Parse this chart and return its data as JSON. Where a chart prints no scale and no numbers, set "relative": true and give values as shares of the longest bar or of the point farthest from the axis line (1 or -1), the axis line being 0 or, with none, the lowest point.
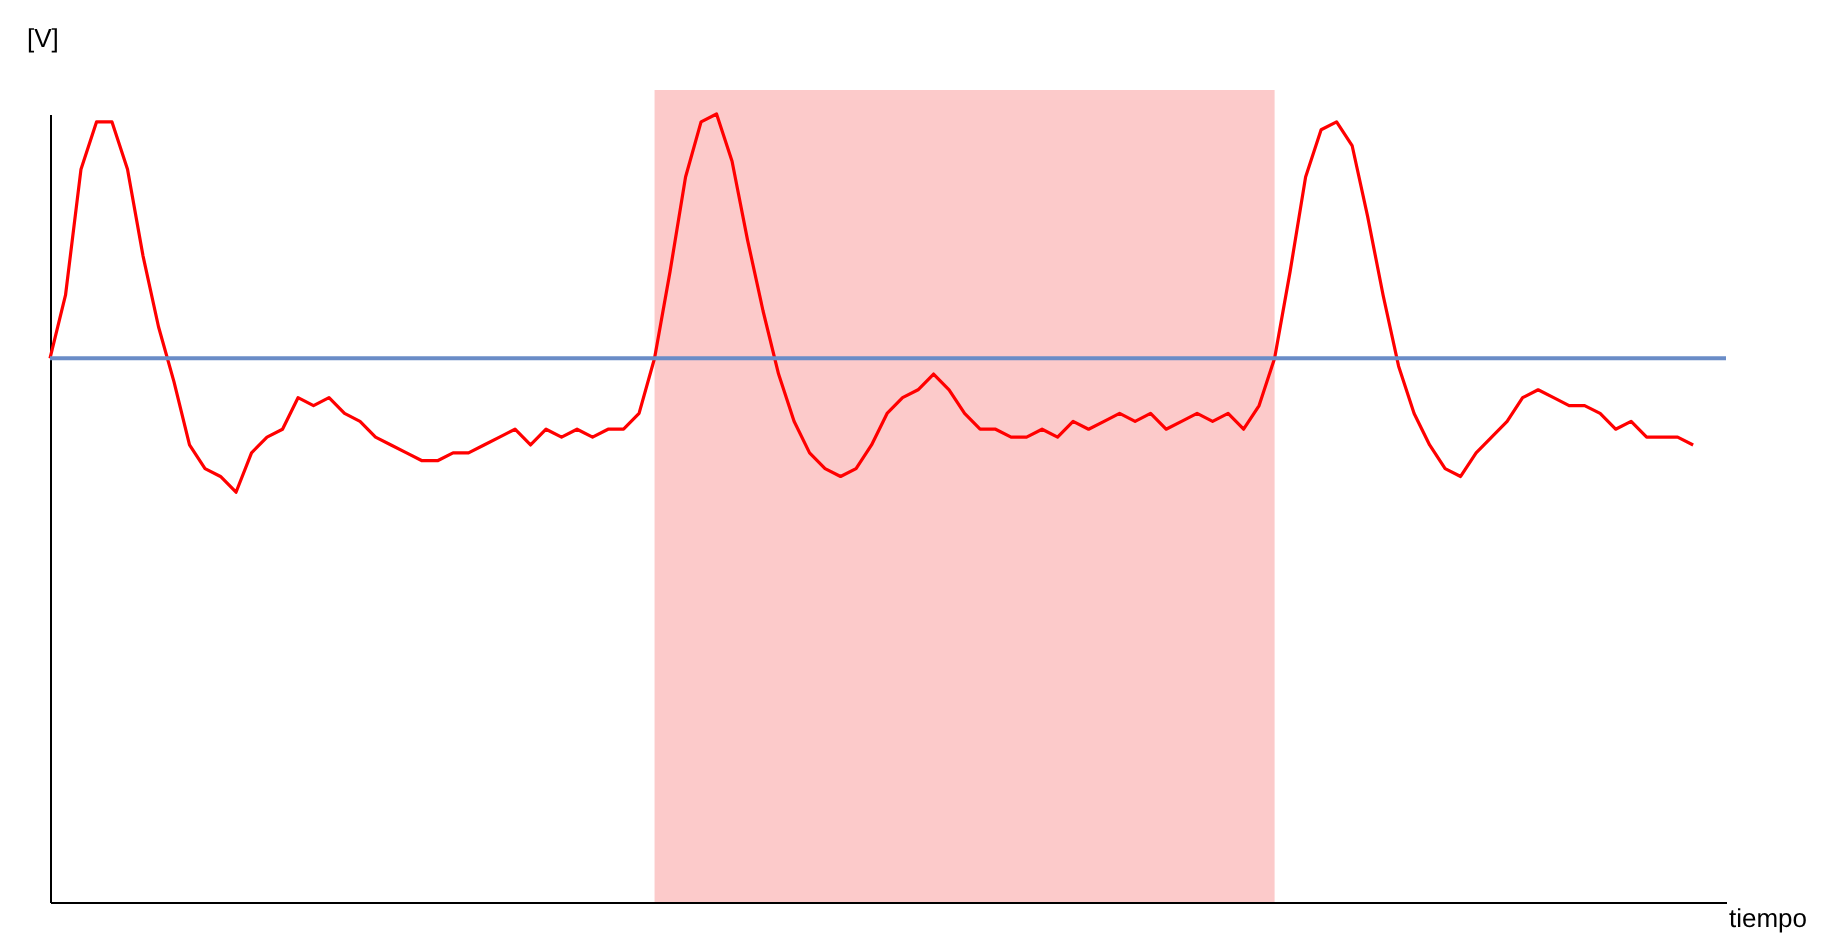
{
  "chart_data": {
    "type": "line",
    "relative": true,
    "ylabel": "[V]",
    "xlabel": "tiempo",
    "marker": "none",
    "line_style": "solid",
    "categories": [
      null,
      null,
      null,
      null,
      null,
      null,
      null,
      null,
      null,
      null,
      null,
      null,
      null,
      null,
      null,
      null,
      null,
      null,
      null,
      null,
      null,
      null,
      null,
      null,
      null,
      null,
      null,
      null,
      null,
      null,
      null,
      null,
      null,
      null,
      null,
      null,
      null,
      null,
      null,
      null,
      null,
      null,
      null,
      null,
      null,
      null,
      null,
      null,
      null,
      null,
      null,
      null,
      null,
      null,
      null,
      null,
      null,
      null,
      null,
      null,
      null,
      null,
      null,
      null,
      null,
      null,
      null,
      null,
      null,
      null,
      null,
      null,
      null,
      null,
      null,
      null,
      null,
      null,
      null,
      null,
      null,
      null,
      null,
      null,
      null,
      null,
      null,
      null,
      null,
      null,
      null,
      null,
      null,
      null,
      null,
      null,
      null,
      null,
      null,
      null,
      null,
      null,
      null,
      null,
      null,
      null,
      null
    ],
    "series": [
      {
        "color": "#ff0000",
        "values": [
          0.69,
          0.77,
          0.93,
          0.99,
          0.99,
          0.93,
          0.82,
          0.73,
          0.66,
          0.58,
          0.55,
          0.54,
          0.52,
          0.57,
          0.59,
          0.6,
          0.64,
          0.63,
          0.64,
          0.62,
          0.61,
          0.59,
          0.58,
          0.57,
          0.56,
          0.56,
          0.57,
          0.57,
          0.58,
          0.59,
          0.6,
          0.58,
          0.6,
          0.59,
          0.6,
          0.59,
          0.6,
          0.6,
          0.62,
          0.69,
          0.8,
          0.92,
          0.99,
          1.0,
          0.94,
          0.84,
          0.75,
          0.67,
          0.61,
          0.57,
          0.55,
          0.54,
          0.55,
          0.58,
          0.62,
          0.64,
          0.65,
          0.67,
          0.65,
          0.62,
          0.6,
          0.6,
          0.59,
          0.59,
          0.6,
          0.59,
          0.61,
          0.6,
          0.61,
          0.62,
          0.61,
          0.62,
          0.6,
          0.61,
          0.62,
          0.61,
          0.62,
          0.6,
          0.63,
          0.69,
          0.8,
          0.92,
          0.98,
          0.99,
          0.96,
          0.87,
          0.77,
          0.68,
          0.62,
          0.58,
          0.55,
          0.54,
          0.57,
          0.59,
          0.61,
          0.64,
          0.65,
          0.64,
          0.63,
          0.63,
          0.62,
          0.6,
          0.61,
          0.59,
          0.59,
          0.59,
          0.58
        ]
      }
    ],
    "ref_lines": [
      {
        "axis": "y",
        "value": 0.69,
        "color": "#6a8cc7"
      }
    ]
  }
}
